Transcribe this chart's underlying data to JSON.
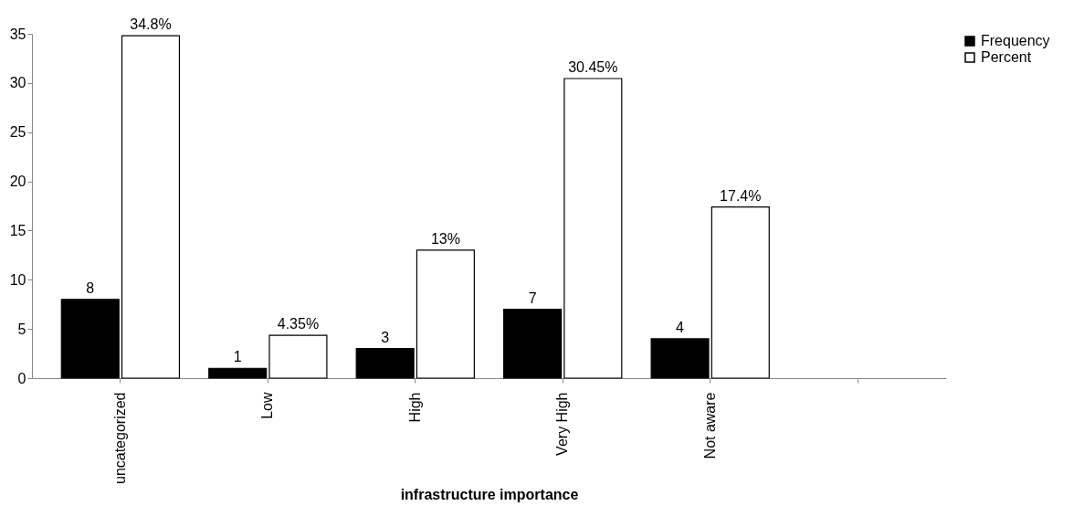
{
  "chart_data": {
    "type": "bar",
    "xlabel": "infrastructure importance",
    "categories": [
      "uncategorized",
      "Low",
      "High",
      "Very High",
      "Not aware",
      null
    ],
    "series": [
      {
        "name": "Frequency",
        "color": "#000000",
        "values": [
          8,
          1,
          3,
          7,
          4,
          null
        ],
        "value_labels": [
          "8",
          "1",
          "3",
          "7",
          "4",
          null
        ]
      },
      {
        "name": "Percent",
        "color": "#ffffff",
        "values": [
          34.8,
          4.35,
          13,
          30.45,
          17.4,
          null
        ],
        "value_labels": [
          "34.8%",
          "4.35%",
          "13%",
          "30.45%",
          "17.4%",
          null
        ]
      }
    ],
    "ylim": [
      0,
      35
    ],
    "yticks": [
      0,
      5,
      10,
      15,
      20,
      25,
      30,
      35
    ],
    "grid": false,
    "legend": "right"
  }
}
